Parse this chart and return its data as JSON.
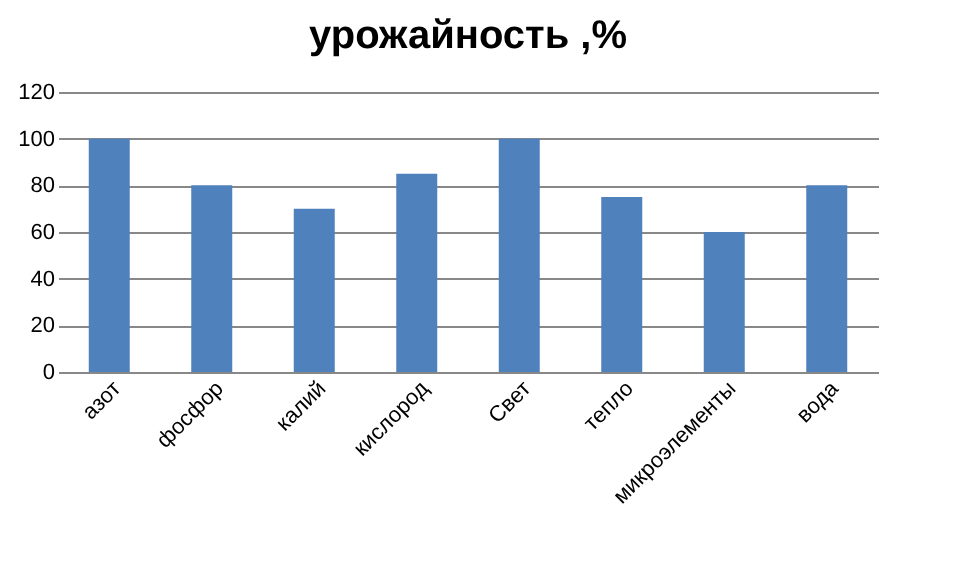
{
  "chart_data": {
    "type": "bar",
    "title": "урожайность ,%",
    "categories": [
      "азот",
      "фосфор",
      "калий",
      "кислород",
      "Свет",
      "тепло",
      "микроэлементы",
      "вода"
    ],
    "values": [
      100,
      80,
      70,
      85,
      100,
      75,
      60,
      80
    ],
    "color": "#4f81bd",
    "ylim": [
      0,
      120
    ],
    "yticks": [
      0,
      20,
      40,
      60,
      80,
      100,
      120
    ],
    "grid": "y"
  }
}
